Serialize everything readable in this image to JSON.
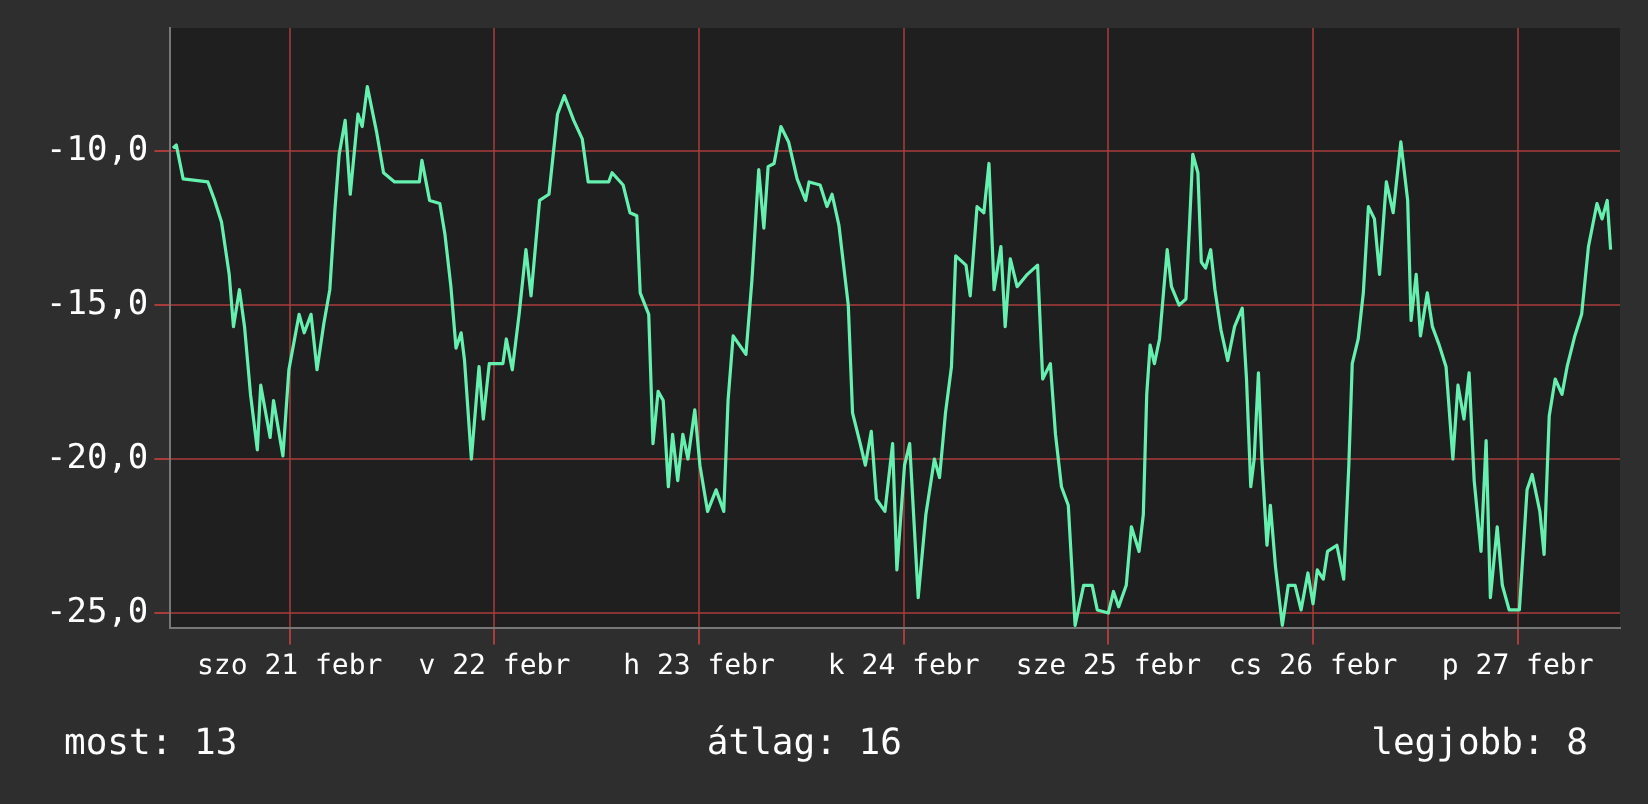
{
  "chart_data": {
    "type": "line",
    "x": [
      "--02-20T22:18",
      "--02-20T22:42",
      "--02-20T23:30",
      "--02-21T02:24",
      "--02-21T03:12",
      "--02-21T04:00",
      "--02-21T04:54",
      "--02-21T05:24",
      "--02-21T06:06",
      "--02-21T06:42",
      "--02-21T07:24",
      "--02-21T08:12",
      "--02-21T08:36",
      "--02-21T09:42",
      "--02-21T10:06",
      "--02-21T11:12",
      "--02-21T11:54",
      "--02-21T13:06",
      "--02-21T13:42",
      "--02-21T14:30",
      "--02-21T15:12",
      "--02-21T16:00",
      "--02-21T16:42",
      "--02-21T17:18",
      "--02-21T17:48",
      "--02-21T18:30",
      "--02-21T19:06",
      "--02-21T20:00",
      "--02-21T20:30",
      "--02-21T21:06",
      "--02-21T22:12",
      "--02-21T23:00",
      "--02-22T00:18",
      "--02-22T03:12",
      "--02-22T03:30",
      "--02-22T04:24",
      "--02-22T05:36",
      "--02-22T06:12",
      "--02-22T06:54",
      "--02-22T07:30",
      "--02-22T08:06",
      "--02-22T08:30",
      "--02-22T09:18",
      "--02-22T10:12",
      "--02-22T10:42",
      "--02-22T11:24",
      "--02-22T13:00",
      "--02-22T13:24",
      "--02-22T14:06",
      "--02-22T14:54",
      "--02-22T15:42",
      "--02-22T16:18",
      "--02-22T17:18",
      "--02-22T18:24",
      "--02-22T19:24",
      "--02-22T20:12",
      "--02-22T21:18",
      "--02-22T22:18",
      "--02-22T23:00",
      "--02-23T01:24",
      "--02-23T01:48",
      "--02-23T03:06",
      "--02-23T03:54",
      "--02-23T04:42",
      "--02-23T05:06",
      "--02-23T06:06",
      "--02-23T06:36",
      "--02-23T07:12",
      "--02-23T07:48",
      "--02-23T08:24",
      "--02-23T08:54",
      "--02-23T09:30",
      "--02-23T10:06",
      "--02-23T10:42",
      "--02-23T11:30",
      "--02-23T12:06",
      "--02-23T13:00",
      "--02-23T14:00",
      "--02-23T14:54",
      "--02-23T15:24",
      "--02-23T16:00",
      "--02-23T17:30",
      "--02-23T18:12",
      "--02-23T19:00",
      "--02-23T19:36",
      "--02-23T20:06",
      "--02-23T20:48",
      "--02-23T21:36",
      "--02-23T22:30",
      "--02-23T23:30",
      "--02-24T00:30",
      "--02-24T00:54",
      "--02-24T02:12",
      "--02-24T03:00",
      "--02-24T03:36",
      "--02-24T04:24",
      "--02-24T05:30",
      "--02-24T06:00",
      "--02-24T06:54",
      "--02-24T07:30",
      "--02-24T08:12",
      "--02-24T08:48",
      "--02-24T09:48",
      "--02-24T10:42",
      "--02-24T11:12",
      "--02-24T12:06",
      "--02-24T12:42",
      "--02-24T13:42",
      "--02-24T14:36",
      "--02-24T15:36",
      "--02-24T16:12",
      "--02-24T16:54",
      "--02-24T17:36",
      "--02-24T18:06",
      "--02-24T19:18",
      "--02-24T19:48",
      "--02-24T20:36",
      "--02-24T21:24",
      "--02-24T22:00",
      "--02-24T22:36",
      "--02-24T23:24",
      "--02-24T23:54",
      "--02-25T00:30",
      "--02-25T01:18",
      "--02-25T02:30",
      "--02-25T03:42",
      "--02-25T04:18",
      "--02-25T05:12",
      "--02-25T05:48",
      "--02-25T06:30",
      "--02-25T07:18",
      "--02-25T08:06",
      "--02-25T09:06",
      "--02-25T10:06",
      "--02-25T10:42",
      "--02-25T12:00",
      "--02-25T12:36",
      "--02-25T13:12",
      "--02-25T14:06",
      "--02-25T14:42",
      "--02-25T15:36",
      "--02-25T16:06",
      "--02-25T16:30",
      "--02-25T16:54",
      "--02-25T17:24",
      "--02-25T18:00",
      "--02-25T18:54",
      "--02-25T19:24",
      "--02-25T20:18",
      "--02-25T21:06",
      "--02-25T21:30",
      "--02-25T21:54",
      "--02-25T22:30",
      "--02-25T22:54",
      "--02-25T23:24",
      "--02-26T00:00",
      "--02-26T00:30",
      "--02-26T01:12",
      "--02-26T02:00",
      "--02-26T02:48",
      "--02-26T03:42",
      "--02-26T04:12",
      "--02-26T04:42",
      "--02-26T05:06",
      "--02-26T05:36",
      "--02-26T06:00",
      "--02-26T06:36",
      "--02-26T07:00",
      "--02-26T07:36",
      "--02-26T08:24",
      "--02-26T09:06",
      "--02-26T09:54",
      "--02-26T10:36",
      "--02-26T11:24",
      "--02-26T12:00",
      "--02-26T12:30",
      "--02-26T13:12",
      "--02-26T13:42",
      "--02-26T14:48",
      "--02-26T15:36",
      "--02-26T16:12",
      "--02-26T16:36",
      "--02-26T17:18",
      "--02-26T17:54",
      "--02-26T18:30",
      "--02-26T19:12",
      "--02-26T19:48",
      "--02-26T20:36",
      "--02-26T21:24",
      "--02-26T22:18",
      "--02-26T23:06",
      "--02-26T23:30",
      "--02-27T00:06",
      "--02-27T00:36",
      "--02-27T01:24",
      "--02-27T02:00",
      "--02-27T02:48",
      "--02-27T03:36",
      "--02-27T04:24",
      "--02-27T05:00",
      "--02-27T05:42",
      "--02-27T06:18",
      "--02-27T06:54",
      "--02-27T07:42",
      "--02-27T08:18",
      "--02-27T08:48",
      "--02-27T09:36",
      "--02-27T10:12",
      "--02-27T11:00",
      "--02-27T12:12",
      "--02-27T13:06",
      "--02-27T13:42",
      "--02-27T14:36",
      "--02-27T15:06",
      "--02-27T15:42",
      "--02-27T16:24",
      "--02-27T17:12",
      "--02-27T17:48",
      "--02-27T18:42",
      "--02-27T19:30",
      "--02-27T20:18",
      "--02-27T21:18",
      "--02-27T21:54",
      "--02-27T22:30",
      "--02-27T22:54"
    ],
    "series": [
      {
        "color": "#66f0b0",
        "values": [
          -9.9,
          -9.8,
          -10.9,
          -11.0,
          -11.6,
          -12.3,
          -14.0,
          -15.7,
          -14.5,
          -15.7,
          -17.9,
          -19.7,
          -17.6,
          -19.3,
          -18.1,
          -19.9,
          -17.1,
          -15.3,
          -15.9,
          -15.3,
          -17.1,
          -15.6,
          -14.5,
          -11.9,
          -10.1,
          -9.0,
          -11.4,
          -8.8,
          -9.2,
          -7.9,
          -9.4,
          -10.7,
          -11.0,
          -11.0,
          -10.3,
          -11.6,
          -11.7,
          -12.7,
          -14.4,
          -16.4,
          -15.9,
          -16.8,
          -20.0,
          -17.0,
          -18.7,
          -16.9,
          -16.9,
          -16.1,
          -17.1,
          -15.3,
          -13.2,
          -14.7,
          -11.6,
          -11.4,
          -8.8,
          -8.2,
          -9.0,
          -9.6,
          -11.0,
          -11.0,
          -10.7,
          -11.1,
          -12.0,
          -12.1,
          -14.6,
          -15.3,
          -19.5,
          -17.8,
          -18.1,
          -20.9,
          -19.2,
          -20.7,
          -19.2,
          -20.0,
          -18.4,
          -20.2,
          -21.7,
          -21.0,
          -21.7,
          -18.1,
          -16.0,
          -16.6,
          -14.2,
          -10.6,
          -12.5,
          -10.5,
          -10.4,
          -9.2,
          -9.7,
          -10.9,
          -11.6,
          -11.0,
          -11.1,
          -11.8,
          -11.4,
          -12.4,
          -15.0,
          -18.5,
          -19.5,
          -20.2,
          -19.1,
          -21.3,
          -21.7,
          -19.5,
          -23.6,
          -20.2,
          -19.5,
          -24.5,
          -21.8,
          -20.0,
          -20.6,
          -18.5,
          -17.0,
          -13.4,
          -13.7,
          -14.7,
          -11.8,
          -12.0,
          -10.4,
          -14.5,
          -13.1,
          -15.7,
          -13.5,
          -14.4,
          -14.0,
          -13.7,
          -17.4,
          -16.9,
          -19.2,
          -20.9,
          -21.5,
          -25.4,
          -24.1,
          -24.1,
          -24.9,
          -25.0,
          -24.3,
          -24.8,
          -24.1,
          -22.2,
          -23.0,
          -21.8,
          -17.9,
          -16.3,
          -16.9,
          -16.1,
          -13.2,
          -14.4,
          -15.0,
          -14.8,
          -12.5,
          -10.1,
          -10.7,
          -13.6,
          -13.8,
          -13.2,
          -14.5,
          -15.8,
          -16.8,
          -15.7,
          -15.1,
          -17.4,
          -20.9,
          -20.0,
          -17.2,
          -20.0,
          -22.8,
          -21.5,
          -23.5,
          -25.4,
          -24.1,
          -24.1,
          -24.9,
          -23.7,
          -24.7,
          -23.6,
          -23.9,
          -23.0,
          -22.8,
          -23.9,
          -20.2,
          -16.9,
          -16.1,
          -14.6,
          -11.8,
          -12.2,
          -14.0,
          -11.0,
          -12.0,
          -9.7,
          -11.6,
          -15.5,
          -14.0,
          -16.0,
          -14.6,
          -15.7,
          -16.3,
          -17.0,
          -20.0,
          -17.6,
          -18.7,
          -17.2,
          -20.7,
          -23.0,
          -19.4,
          -24.5,
          -22.2,
          -24.1,
          -24.9,
          -24.9,
          -21.0,
          -20.5,
          -21.7,
          -23.1,
          -18.6,
          -17.4,
          -17.9,
          -17.0,
          -16.0,
          -15.3,
          -13.1,
          -11.7,
          -12.2,
          -11.6,
          -13.2
        ]
      }
    ],
    "xlim": [
      "--02-20T22:00",
      "--02-28T00:00"
    ],
    "xticks": [
      {
        "value": "--02-21T12:00",
        "label": "szo 21 febr"
      },
      {
        "value": "--02-22T12:00",
        "label": "v 22 febr"
      },
      {
        "value": "--02-23T12:00",
        "label": "h 23 febr"
      },
      {
        "value": "--02-24T12:00",
        "label": "k 24 febr"
      },
      {
        "value": "--02-25T12:00",
        "label": "sze 25 febr"
      },
      {
        "value": "--02-26T12:00",
        "label": "cs 26 febr"
      },
      {
        "value": "--02-27T12:00",
        "label": "p 27 febr"
      }
    ],
    "ylim": [
      -25.5,
      -6
    ],
    "yticks": [
      {
        "value": -25,
        "label": "-25,0"
      },
      {
        "value": -20,
        "label": "-20,0"
      },
      {
        "value": -15,
        "label": "-15,0"
      },
      {
        "value": -10,
        "label": "-10,0"
      }
    ],
    "grid": true,
    "marker": "none",
    "line_style": "solid",
    "annotations": [
      "most: 13",
      "átlag: 16",
      "legjobb: 8"
    ]
  }
}
